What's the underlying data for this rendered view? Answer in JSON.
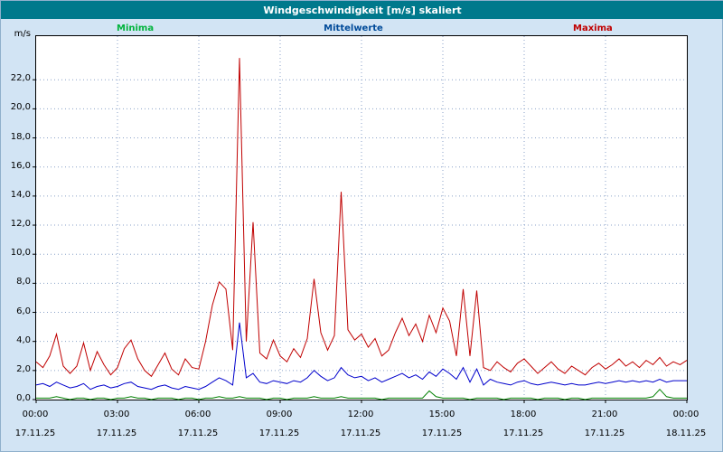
{
  "window": {
    "title": "Windgeschwindigkeit [m/s] skaliert"
  },
  "legend": {
    "minima": "Minima",
    "mittelwerte": "Mittelwerte",
    "maxima": "Maxima"
  },
  "axis": {
    "unit_label": "m/s"
  },
  "colors": {
    "titlebar_bg": "#00798c",
    "titlebar_text": "#ffffff",
    "page_bg": "#d2e4f4",
    "plot_bg": "#ffffff",
    "grid": "#8aa2c8",
    "minima_line": "#008000",
    "mittelwerte_line": "#0000cc",
    "maxima_line": "#c00000",
    "minima_label": "#00b33c",
    "mittelwerte_label": "#004a99",
    "maxima_label": "#c00000"
  },
  "chart_data": {
    "type": "line",
    "title": "Windgeschwindigkeit [m/s] skaliert",
    "xlabel": "",
    "ylabel": "m/s",
    "x_start_hour": 0,
    "x_end_hour": 24,
    "x_interval_hours": 0.25,
    "ylim": [
      0,
      25
    ],
    "grid": true,
    "legend_position": "top",
    "yticks": [
      {
        "value": 0,
        "label": "0,0"
      },
      {
        "value": 2,
        "label": "2,0"
      },
      {
        "value": 4,
        "label": "4,0"
      },
      {
        "value": 6,
        "label": "6,0"
      },
      {
        "value": 8,
        "label": "8,0"
      },
      {
        "value": 10,
        "label": "10,0"
      },
      {
        "value": 12,
        "label": "12,0"
      },
      {
        "value": 14,
        "label": "14,0"
      },
      {
        "value": 16,
        "label": "16,0"
      },
      {
        "value": 18,
        "label": "18,0"
      },
      {
        "value": 20,
        "label": "20,0"
      },
      {
        "value": 22,
        "label": "22,0"
      }
    ],
    "xticks": [
      {
        "hour": 0,
        "time": "00:00",
        "date": "17.11.25"
      },
      {
        "hour": 3,
        "time": "03:00",
        "date": "17.11.25"
      },
      {
        "hour": 6,
        "time": "06:00",
        "date": "17.11.25"
      },
      {
        "hour": 9,
        "time": "09:00",
        "date": "17.11.25"
      },
      {
        "hour": 12,
        "time": "12:00",
        "date": "17.11.25"
      },
      {
        "hour": 15,
        "time": "15:00",
        "date": "17.11.25"
      },
      {
        "hour": 18,
        "time": "18:00",
        "date": "17.11.25"
      },
      {
        "hour": 21,
        "time": "21:00",
        "date": "17.11.25"
      },
      {
        "hour": 24,
        "time": "00:00",
        "date": "18.11.25"
      }
    ],
    "series": [
      {
        "name": "Minima",
        "color": "#008000",
        "values": [
          0.1,
          0.1,
          0.1,
          0.2,
          0.1,
          0.0,
          0.1,
          0.1,
          0.0,
          0.1,
          0.1,
          0.0,
          0.1,
          0.1,
          0.2,
          0.1,
          0.1,
          0.0,
          0.1,
          0.1,
          0.1,
          0.0,
          0.1,
          0.1,
          0.0,
          0.1,
          0.1,
          0.2,
          0.1,
          0.1,
          0.2,
          0.1,
          0.1,
          0.1,
          0.0,
          0.1,
          0.1,
          0.0,
          0.1,
          0.1,
          0.1,
          0.2,
          0.1,
          0.1,
          0.1,
          0.2,
          0.1,
          0.1,
          0.1,
          0.1,
          0.1,
          0.0,
          0.1,
          0.1,
          0.1,
          0.1,
          0.1,
          0.1,
          0.6,
          0.2,
          0.1,
          0.1,
          0.1,
          0.1,
          0.0,
          0.1,
          0.1,
          0.1,
          0.1,
          0.0,
          0.1,
          0.1,
          0.1,
          0.1,
          0.0,
          0.1,
          0.1,
          0.1,
          0.0,
          0.1,
          0.1,
          0.0,
          0.1,
          0.1,
          0.1,
          0.1,
          0.1,
          0.1,
          0.1,
          0.1,
          0.1,
          0.2,
          0.7,
          0.2,
          0.1,
          0.1,
          0.1
        ]
      },
      {
        "name": "Mittelwerte",
        "color": "#0000cc",
        "values": [
          1.0,
          1.1,
          0.9,
          1.2,
          1.0,
          0.8,
          0.9,
          1.1,
          0.7,
          0.9,
          1.0,
          0.8,
          0.9,
          1.1,
          1.2,
          0.9,
          0.8,
          0.7,
          0.9,
          1.0,
          0.8,
          0.7,
          0.9,
          0.8,
          0.7,
          0.9,
          1.2,
          1.5,
          1.3,
          1.0,
          5.3,
          1.5,
          1.8,
          1.2,
          1.1,
          1.3,
          1.2,
          1.1,
          1.3,
          1.2,
          1.5,
          2.0,
          1.6,
          1.3,
          1.5,
          2.2,
          1.7,
          1.5,
          1.6,
          1.3,
          1.5,
          1.2,
          1.4,
          1.6,
          1.8,
          1.5,
          1.7,
          1.4,
          1.9,
          1.6,
          2.1,
          1.8,
          1.4,
          2.2,
          1.2,
          2.1,
          1.0,
          1.4,
          1.2,
          1.1,
          1.0,
          1.2,
          1.3,
          1.1,
          1.0,
          1.1,
          1.2,
          1.1,
          1.0,
          1.1,
          1.0,
          1.0,
          1.1,
          1.2,
          1.1,
          1.2,
          1.3,
          1.2,
          1.3,
          1.2,
          1.3,
          1.2,
          1.4,
          1.2,
          1.3,
          1.3,
          1.3
        ]
      },
      {
        "name": "Maxima",
        "color": "#c00000",
        "values": [
          2.6,
          2.2,
          3.0,
          4.5,
          2.3,
          1.8,
          2.3,
          3.9,
          2.0,
          3.3,
          2.4,
          1.7,
          2.2,
          3.5,
          4.1,
          2.8,
          2.0,
          1.6,
          2.4,
          3.2,
          2.1,
          1.7,
          2.8,
          2.2,
          2.1,
          4.0,
          6.5,
          8.1,
          7.6,
          3.4,
          23.5,
          4.0,
          12.2,
          3.2,
          2.8,
          4.1,
          3.0,
          2.6,
          3.5,
          2.9,
          4.2,
          8.3,
          4.6,
          3.4,
          4.4,
          14.3,
          4.8,
          4.1,
          4.5,
          3.6,
          4.2,
          3.0,
          3.4,
          4.6,
          5.6,
          4.4,
          5.2,
          4.0,
          5.8,
          4.6,
          6.3,
          5.4,
          3.0,
          7.6,
          3.0,
          7.5,
          2.2,
          2.0,
          2.6,
          2.2,
          1.9,
          2.5,
          2.8,
          2.3,
          1.8,
          2.2,
          2.6,
          2.1,
          1.8,
          2.3,
          2.0,
          1.7,
          2.2,
          2.5,
          2.1,
          2.4,
          2.8,
          2.3,
          2.6,
          2.2,
          2.7,
          2.4,
          2.9,
          2.3,
          2.6,
          2.4,
          2.7
        ]
      }
    ]
  }
}
